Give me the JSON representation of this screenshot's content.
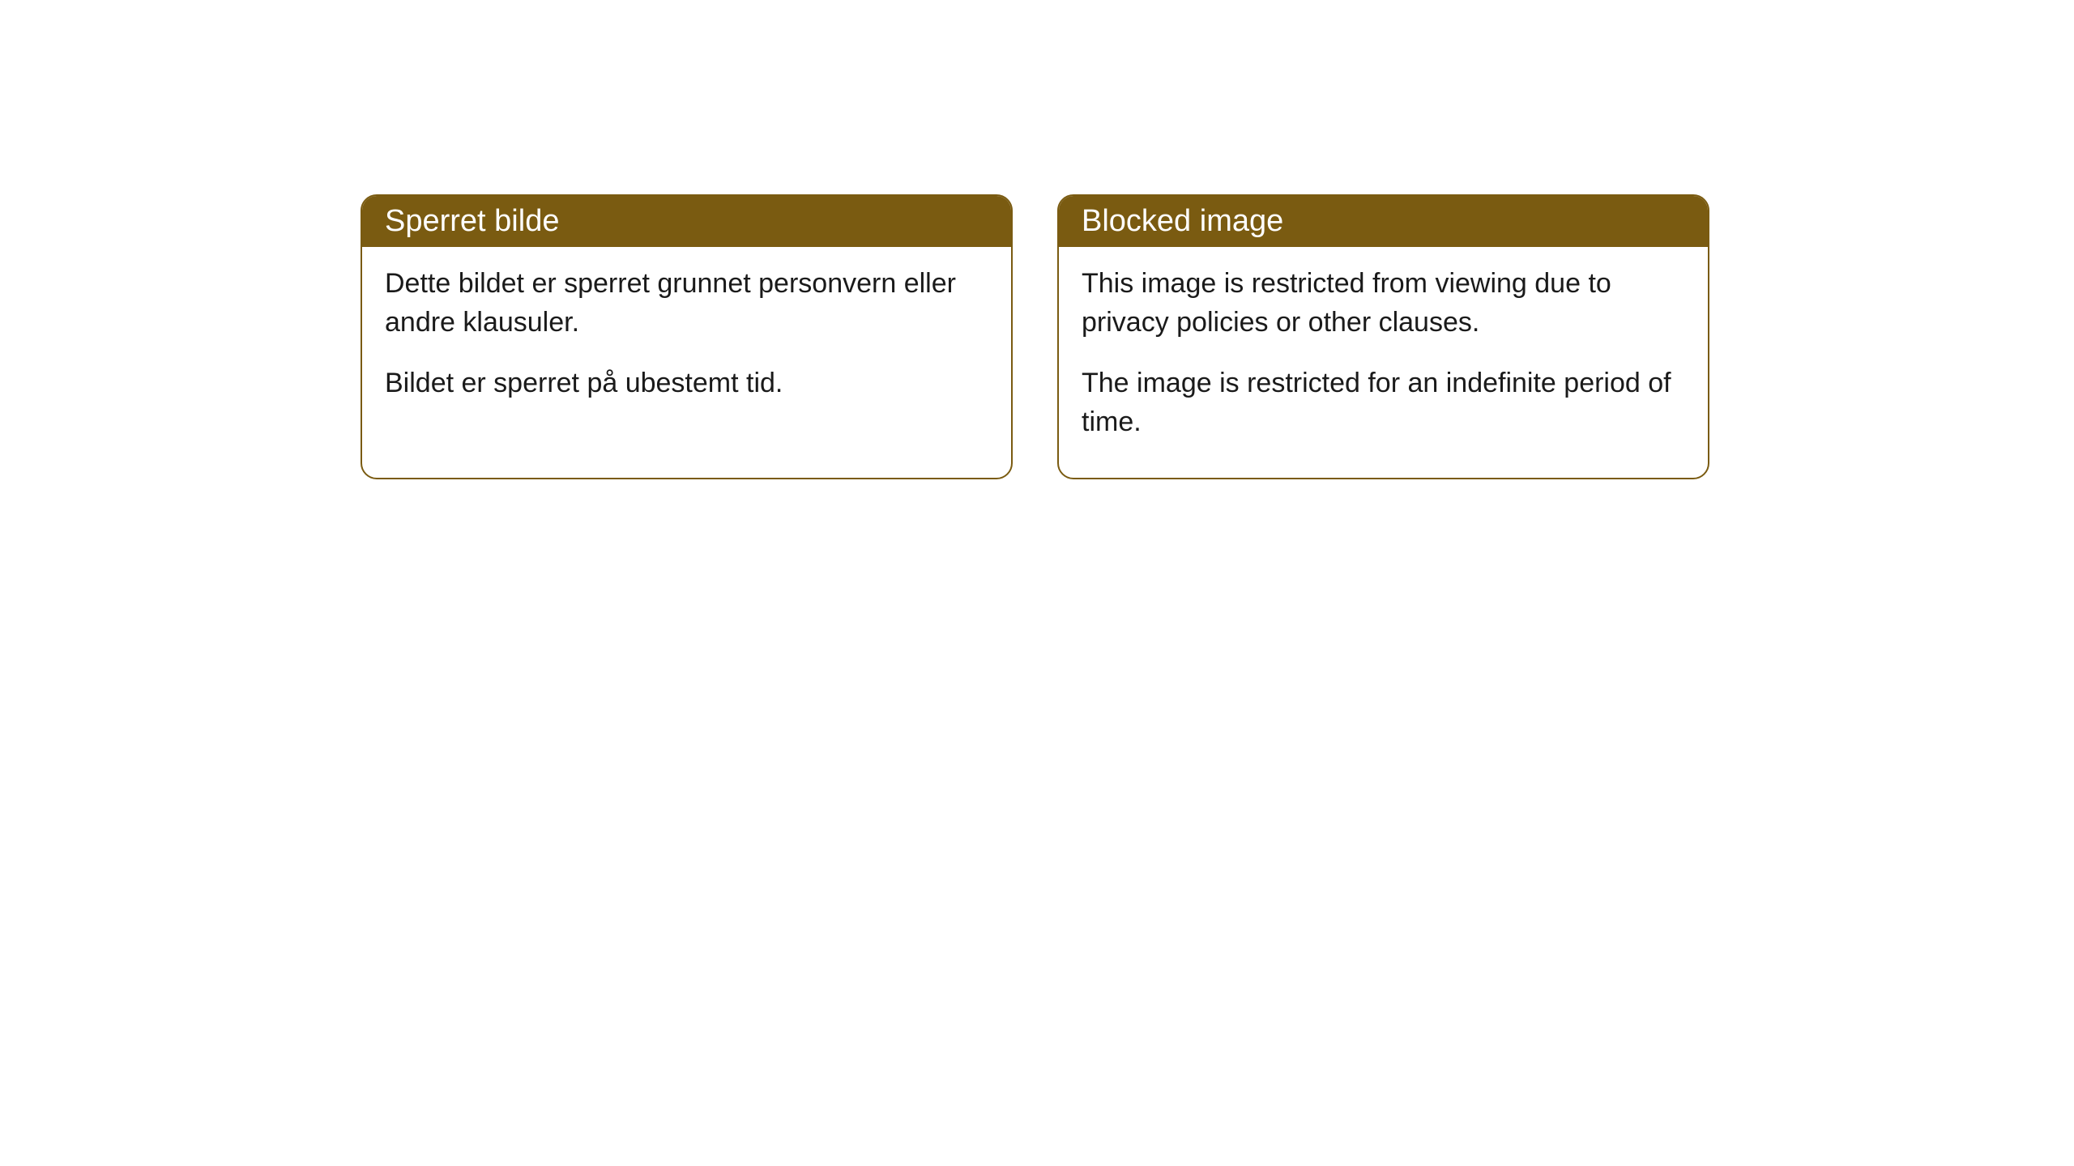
{
  "cards": [
    {
      "title": "Sperret bilde",
      "paragraph1": "Dette bildet er sperret grunnet personvern eller andre klausuler.",
      "paragraph2": "Bildet er sperret på ubestemt tid."
    },
    {
      "title": "Blocked image",
      "paragraph1": "This image is restricted from viewing due to privacy policies or other clauses.",
      "paragraph2": "The image is restricted for an indefinite period of time."
    }
  ],
  "styling": {
    "header_background_color": "#7a5b11",
    "header_text_color": "#ffffff",
    "border_color": "#7a5b11",
    "body_background_color": "#ffffff",
    "body_text_color": "#1a1a1a",
    "border_radius": 20,
    "header_fontsize": 38,
    "body_fontsize": 34
  }
}
